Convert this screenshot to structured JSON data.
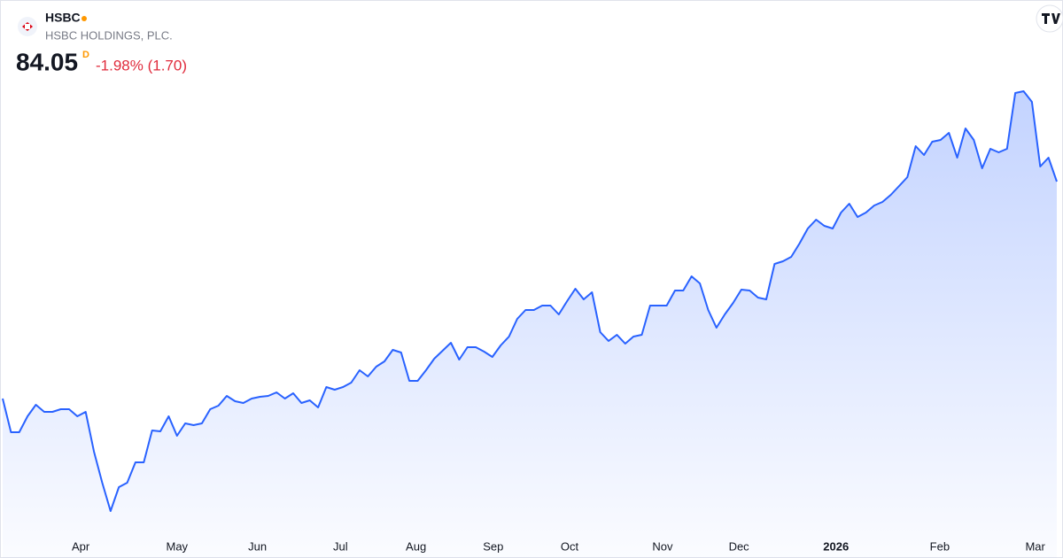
{
  "chart_data": {
    "type": "area",
    "symbol": "HSBC",
    "company": "HSBC HOLDINGS, PLC.",
    "price": "84.05",
    "price_flag": "D",
    "change": "-1.98% (1.70)",
    "color": "#2962ff",
    "change_color": "#e02b3c",
    "values": [
      58.32,
      54.33,
      54.33,
      56.22,
      57.59,
      56.75,
      56.75,
      57.06,
      57.06,
      56.22,
      56.75,
      52.02,
      48.35,
      44.99,
      47.82,
      48.35,
      50.76,
      50.76,
      54.54,
      54.44,
      56.22,
      53.91,
      55.38,
      55.17,
      55.38,
      57.06,
      57.48,
      58.64,
      58.01,
      57.8,
      58.32,
      58.53,
      58.64,
      59.06,
      58.32,
      58.95,
      57.8,
      58.11,
      57.27,
      59.69,
      59.37,
      59.69,
      60.21,
      61.68,
      60.95,
      62.1,
      62.73,
      64.1,
      63.78,
      60.42,
      60.42,
      61.68,
      63.05,
      63.99,
      64.94,
      62.94,
      64.41,
      64.41,
      63.89,
      63.26,
      64.62,
      65.67,
      67.77,
      68.82,
      68.82,
      69.35,
      69.35,
      68.3,
      69.87,
      71.34,
      70.08,
      70.92,
      66.2,
      65.15,
      65.88,
      64.83,
      65.67,
      65.88,
      69.35,
      69.35,
      69.35,
      71.13,
      71.13,
      72.81,
      71.97,
      68.82,
      66.72,
      68.3,
      69.66,
      71.24,
      71.13,
      70.29,
      70.08,
      74.28,
      74.6,
      75.12,
      76.7,
      78.48,
      79.53,
      78.8,
      78.48,
      80.37,
      81.42,
      79.85,
      80.37,
      81.21,
      81.63,
      82.47,
      83.52,
      84.58,
      88.25,
      87.2,
      88.78,
      88.99,
      89.83,
      86.89,
      90.35,
      88.99,
      85.63,
      87.94,
      87.52,
      87.94,
      94.55,
      94.76,
      93.5,
      85.84,
      86.89,
      84.05
    ],
    "xticks": [
      {
        "value": 9.4,
        "label": "Apr"
      },
      {
        "value": 21,
        "label": "May"
      },
      {
        "value": 30.7,
        "label": "Jun"
      },
      {
        "value": 40.7,
        "label": "Jul"
      },
      {
        "value": 49.8,
        "label": "Aug"
      },
      {
        "value": 59.1,
        "label": "Sep"
      },
      {
        "value": 68.3,
        "label": "Oct"
      },
      {
        "value": 79.5,
        "label": "Nov"
      },
      {
        "value": 88.7,
        "label": "Dec"
      },
      {
        "value": 100.4,
        "label": "2026"
      },
      {
        "value": 112.9,
        "label": "Feb"
      },
      {
        "value": 124.4,
        "label": "Mar"
      }
    ]
  }
}
